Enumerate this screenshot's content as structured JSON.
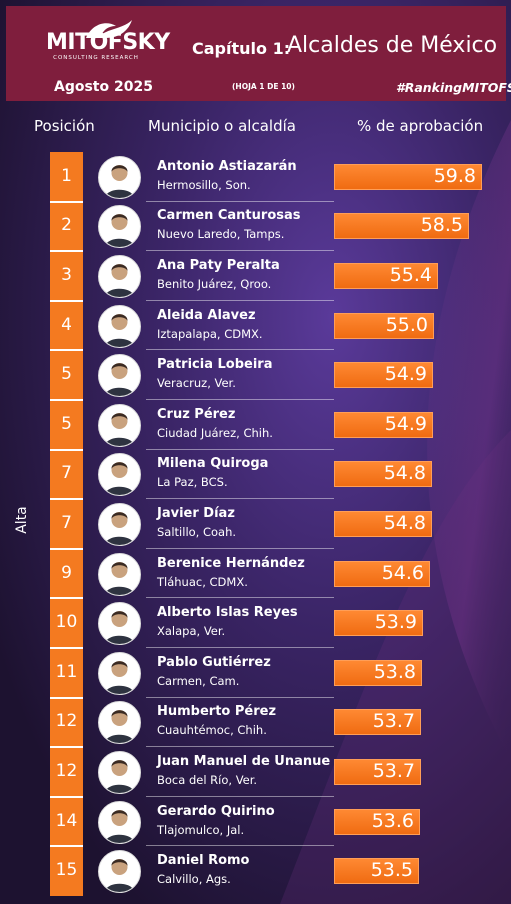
{
  "header": {
    "logo": "MITOFSKY",
    "logo_sub": "CONSULTING RESEARCH",
    "chapter": "Capítulo 1:",
    "title": "Alcaldes de México",
    "date": "Agosto  2025",
    "sheet": "(HOJA 1 DE 10)",
    "hashtag": "#RankingMITOFSKY"
  },
  "colors": {
    "header_bg": "#7f1e3d",
    "accent": "#f47a20",
    "bar": "#f47a20"
  },
  "chart_data": {
    "type": "bar",
    "orientation": "horizontal",
    "columns": {
      "position": "Posición",
      "municipality": "Municipio o alcaldía",
      "value": "% de aprobación"
    },
    "axis_label": "Alta",
    "xlim": [
      0,
      60
    ],
    "rows": [
      {
        "rank": "1",
        "name": "Antonio Astiazarán",
        "place": "Hermosillo, Son.",
        "value": 59.8,
        "value_label": "59.8"
      },
      {
        "rank": "2",
        "name": "Carmen Canturosas",
        "place": "Nuevo Laredo, Tamps.",
        "value": 58.5,
        "value_label": "58.5"
      },
      {
        "rank": "3",
        "name": "Ana Paty Peralta",
        "place": "Benito Juárez, Qroo.",
        "value": 55.4,
        "value_label": "55.4"
      },
      {
        "rank": "4",
        "name": "Aleida Alavez",
        "place": "Iztapalapa, CDMX.",
        "value": 55.0,
        "value_label": "55.0"
      },
      {
        "rank": "5",
        "name": "Patricia Lobeira",
        "place": "Veracruz, Ver.",
        "value": 54.9,
        "value_label": "54.9"
      },
      {
        "rank": "5",
        "name": "Cruz Pérez",
        "place": "Ciudad Juárez, Chih.",
        "value": 54.9,
        "value_label": "54.9"
      },
      {
        "rank": "7",
        "name": "Milena Quiroga",
        "place": "La Paz, BCS.",
        "value": 54.8,
        "value_label": "54.8"
      },
      {
        "rank": "7",
        "name": "Javier Díaz",
        "place": "Saltillo, Coah.",
        "value": 54.8,
        "value_label": "54.8"
      },
      {
        "rank": "9",
        "name": "Berenice Hernández",
        "place": "Tláhuac, CDMX.",
        "value": 54.6,
        "value_label": "54.6"
      },
      {
        "rank": "10",
        "name": "Alberto Islas Reyes",
        "place": "Xalapa, Ver.",
        "value": 53.9,
        "value_label": "53.9"
      },
      {
        "rank": "11",
        "name": "Pablo Gutiérrez",
        "place": "Carmen, Cam.",
        "value": 53.8,
        "value_label": "53.8"
      },
      {
        "rank": "12",
        "name": "Humberto Pérez",
        "place": "Cuauhtémoc, Chih.",
        "value": 53.7,
        "value_label": "53.7"
      },
      {
        "rank": "12",
        "name": "Juan Manuel de Unanue",
        "place": "Boca del Río, Ver.",
        "value": 53.7,
        "value_label": "53.7"
      },
      {
        "rank": "14",
        "name": "Gerardo Quirino",
        "place": "Tlajomulco, Jal.",
        "value": 53.6,
        "value_label": "53.6"
      },
      {
        "rank": "15",
        "name": "Daniel Romo",
        "place": "Calvillo, Ags.",
        "value": 53.5,
        "value_label": "53.5"
      }
    ]
  }
}
